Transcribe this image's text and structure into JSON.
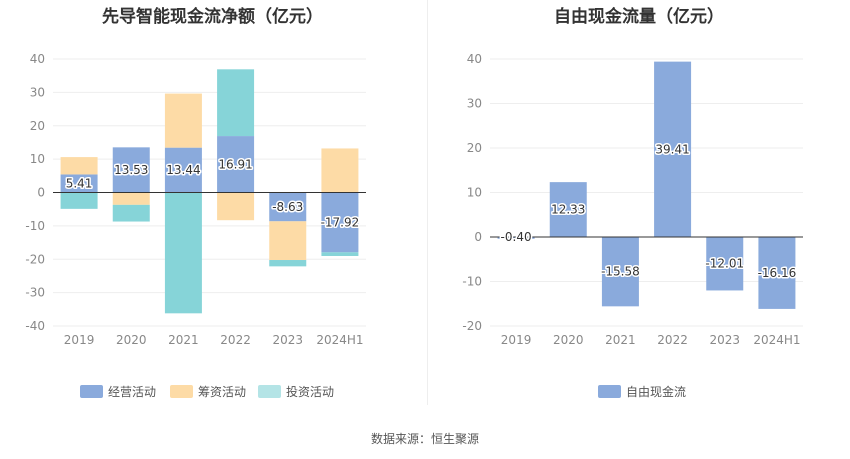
{
  "source_note": "数据来源：恒生聚源",
  "colors": {
    "operating": "#8aaadc",
    "financing": "#fddba6",
    "investing": "#86d4d8",
    "free": "#8aaadc",
    "grid": "#eeeeee",
    "axis": "#333333",
    "tick": "#888888"
  },
  "chart_data": [
    {
      "type": "bar",
      "title": "先导智能现金流净额（亿元）",
      "categories": [
        "2019",
        "2020",
        "2021",
        "2022",
        "2023",
        "2024H1"
      ],
      "ylim": [
        -40,
        40
      ],
      "yticks": [
        40,
        30,
        20,
        10,
        0,
        -10,
        -20,
        -30,
        -40
      ],
      "stacked": true,
      "grid": true,
      "legend_position": "bottom",
      "series": [
        {
          "name": "经营活动",
          "key": "operating",
          "values": [
            5.41,
            13.53,
            13.44,
            16.91,
            -8.63,
            -17.92
          ],
          "labels": [
            "5.41",
            "13.53",
            "13.44",
            "16.91",
            "-8.63",
            "-17.92"
          ]
        },
        {
          "name": "筹资活动",
          "key": "financing",
          "values": [
            5.2,
            -3.7,
            16.2,
            -8.3,
            -11.6,
            13.2
          ]
        },
        {
          "name": "投资活动",
          "key": "investing",
          "values": [
            -4.9,
            -5.0,
            -36.2,
            20.0,
            -1.9,
            -1.1
          ]
        }
      ]
    },
    {
      "type": "bar",
      "title": "自由现金流量（亿元）",
      "categories": [
        "2019",
        "2020",
        "2021",
        "2022",
        "2023",
        "2024H1"
      ],
      "ylim": [
        -20,
        40
      ],
      "yticks": [
        40,
        30,
        20,
        10,
        0,
        -10,
        -20
      ],
      "grid": true,
      "legend_position": "bottom",
      "series": [
        {
          "name": "自由现金流",
          "key": "free",
          "values": [
            -0.4,
            12.33,
            -15.58,
            39.41,
            -12.01,
            -16.16
          ],
          "labels": [
            "-0.40",
            "12.33",
            "-15.58",
            "39.41",
            "-12.01",
            "-16.16"
          ]
        }
      ]
    }
  ]
}
